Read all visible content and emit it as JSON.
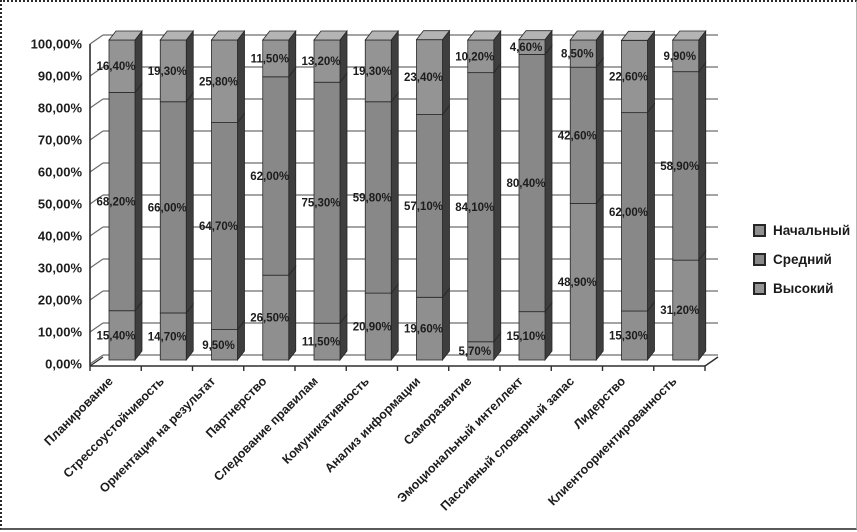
{
  "chart_data": {
    "type": "bar",
    "variant": "3d-100-percent-stacked-column",
    "title": "",
    "categories": [
      "Планирование",
      "Стрессоустойчивость",
      "Ориентация на результат",
      "Партнерство",
      "Следование правилам",
      "Комуникативность",
      "Анализ информации",
      "Саморазвитие",
      "Эмоциональный интеллект",
      "Пассивный словарный запас",
      "Лидерство",
      "Клиентоориентированность"
    ],
    "series": [
      {
        "name": "Начальный",
        "values": [
          15.4,
          14.7,
          9.5,
          26.5,
          11.5,
          20.9,
          19.6,
          5.7,
          15.1,
          48.9,
          15.3,
          31.2
        ],
        "labels": [
          "15,40%",
          "14,70%",
          "9,50%",
          "26,50%",
          "11,50%",
          "20,90%",
          "19,60%",
          "5,70%",
          "15,10%",
          "48,90%",
          "15,30%",
          "31,20%"
        ],
        "color": "#8f8f8f"
      },
      {
        "name": "Средний",
        "values": [
          68.2,
          66.0,
          64.7,
          62.0,
          75.3,
          59.8,
          57.1,
          84.1,
          80.4,
          42.6,
          62.0,
          58.9
        ],
        "labels": [
          "68,20%",
          "66,00%",
          "64,70%",
          "62,00%",
          "75,30%",
          "59,80%",
          "57,10%",
          "84,10%",
          "80,40%",
          "42,60%",
          "62,00%",
          "58,90%"
        ],
        "color": "#888888"
      },
      {
        "name": "Высокий",
        "values": [
          16.4,
          19.3,
          25.8,
          11.5,
          13.2,
          19.3,
          23.4,
          10.2,
          4.6,
          8.5,
          22.6,
          9.9
        ],
        "labels": [
          "16,40%",
          "19,30%",
          "25,80%",
          "11,50%",
          "13,20%",
          "19,30%",
          "23,40%",
          "10,20%",
          "4,60%",
          "8,50%",
          "22,60%",
          "9,90%"
        ],
        "color": "#949494"
      }
    ],
    "y_ticks": [
      "0,00%",
      "10,00%",
      "20,00%",
      "30,00%",
      "40,00%",
      "50,00%",
      "60,00%",
      "70,00%",
      "80,00%",
      "90,00%",
      "100,00%"
    ],
    "ylim": [
      0,
      100
    ],
    "grid": true,
    "legend_position": "right",
    "legend": [
      "Начальный",
      "Средний",
      "Высокий"
    ]
  },
  "colors": {
    "bar_side": "#3e3e3e",
    "bar_top": "#b4b4b4",
    "segment_border": "#262626",
    "grid": "#6e6e6e",
    "axis": "#2e2e2e",
    "label": "#1c1c1c"
  }
}
